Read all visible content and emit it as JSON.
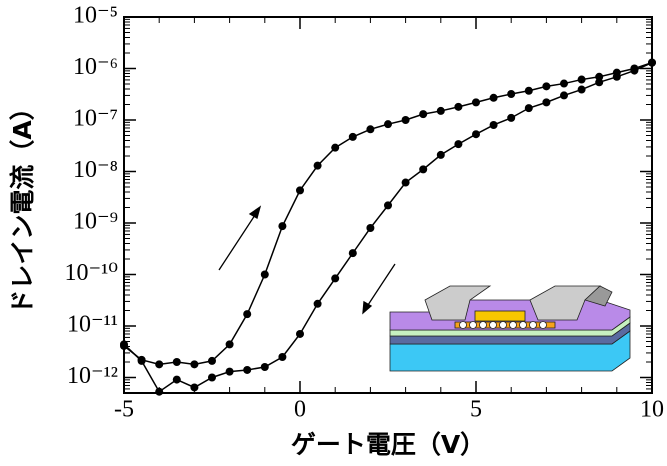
{
  "chart_data": {
    "type": "line",
    "x_label": "ゲート電圧（V）",
    "y_label": "ドレイン電流（A）",
    "x": [
      -5,
      -4.5,
      -4,
      -3.5,
      -3,
      -2.5,
      -2,
      -1.5,
      -1,
      -0.5,
      0,
      0.5,
      1,
      1.5,
      2,
      2.5,
      3,
      3.5,
      4,
      4.5,
      5,
      5.5,
      6,
      6.5,
      7,
      7.5,
      8,
      8.5,
      9,
      9.5,
      10
    ],
    "series": [
      {
        "color": "#000000",
        "values": [
          4.1e-12,
          2.2e-12,
          1.8e-12,
          2e-12,
          1.8e-12,
          2.1e-12,
          4.4e-12,
          1.7e-11,
          1e-10,
          8.7e-10,
          4.3e-09,
          1.3e-08,
          2.9e-08,
          4.7e-08,
          6.6e-08,
          8.3e-08,
          1e-07,
          1.3e-07,
          1.5e-07,
          1.8e-07,
          2.2e-07,
          2.7e-07,
          3.2e-07,
          3.7e-07,
          4.5e-07,
          5.1e-07,
          6.1e-07,
          6.9e-07,
          8.3e-07,
          1e-06,
          1.3e-06
        ]
      },
      {
        "color": "#000000",
        "values": [
          4.4e-12,
          2.1e-12,
          5.3e-13,
          9.1e-13,
          6.4e-13,
          1e-12,
          1.3e-12,
          1.4e-12,
          1.6e-12,
          2.5e-12,
          7e-12,
          2.7e-11,
          8.4e-11,
          2.6e-10,
          8e-10,
          2.2e-09,
          6.1e-09,
          1.1e-08,
          2.1e-08,
          3.4e-08,
          5.3e-08,
          8e-08,
          1.1e-07,
          1.7e-07,
          2.2e-07,
          3e-07,
          3.9e-07,
          5.4e-07,
          6.9e-07,
          9.1e-07,
          1.3e-06
        ]
      }
    ],
    "xlim": [
      -5,
      10
    ],
    "xticks": [
      -5,
      0,
      5,
      10
    ],
    "ylim": [
      5e-13,
      1e-05
    ],
    "ylog": true,
    "yticks": [
      {
        "value": 1e-12,
        "label": "10⁻¹²"
      },
      {
        "value": 1e-11,
        "label": "10⁻¹¹"
      },
      {
        "value": 1e-10,
        "label": "10⁻¹⁰"
      },
      {
        "value": 1e-09,
        "label": "10⁻⁹"
      },
      {
        "value": 1e-08,
        "label": "10⁻⁸"
      },
      {
        "value": 1e-07,
        "label": "10⁻⁷"
      },
      {
        "value": 1e-06,
        "label": "10⁻⁶"
      },
      {
        "value": 1e-05,
        "label": "10⁻⁵"
      }
    ],
    "grid": false
  }
}
